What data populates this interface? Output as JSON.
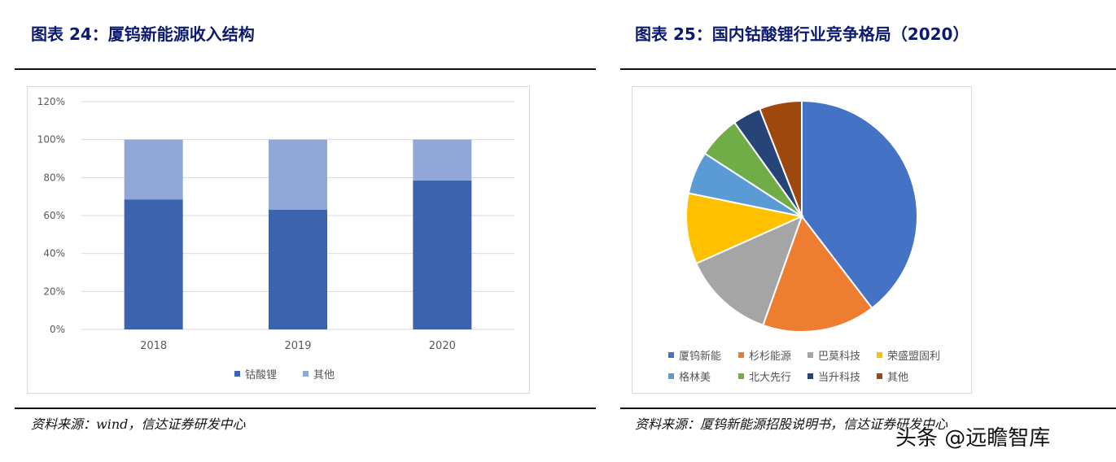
{
  "left": {
    "title": "图表 24：厦钨新能源收入结构",
    "source": "资料来源：wind，信达证券研发中心"
  },
  "right": {
    "title": "图表 25：国内钴酸锂行业竞争格局（2020）",
    "source": "资料来源：厦钨新能源招股说明书，信达证券研发中心"
  },
  "watermark": "头条 @远瞻智库",
  "colors": {
    "title": "#0b1a6e",
    "grid": "#d9d9d9",
    "tick": "#595959"
  },
  "chart_data": [
    {
      "type": "bar",
      "stacked": true,
      "title": "",
      "categories": [
        "2018",
        "2019",
        "2020"
      ],
      "series": [
        {
          "name": "钴酸锂",
          "values": [
            68.5,
            63,
            78.5
          ],
          "color": "#3c64ae"
        },
        {
          "name": "其他",
          "values": [
            31.5,
            37,
            21.5
          ],
          "color": "#91a7d6"
        }
      ],
      "yticks": [
        "0%",
        "20%",
        "40%",
        "60%",
        "80%",
        "100%",
        "120%"
      ],
      "ylim": [
        0,
        120
      ],
      "grid": true,
      "legend": "bottom"
    },
    {
      "type": "pie",
      "title": "",
      "slices": [
        {
          "label": "厦钨新能",
          "value": 40,
          "color": "#4472c4"
        },
        {
          "label": "杉杉能源",
          "value": 16,
          "color": "#ed7d31"
        },
        {
          "label": "巴莫科技",
          "value": 13,
          "color": "#a5a5a5"
        },
        {
          "label": "荣盛盟固利",
          "value": 10,
          "color": "#ffc000"
        },
        {
          "label": "格林美",
          "value": 6,
          "color": "#5b9bd5"
        },
        {
          "label": "北大先行",
          "value": 6,
          "color": "#70ad47"
        },
        {
          "label": "当升科技",
          "value": 4,
          "color": "#264478"
        },
        {
          "label": "其他",
          "value": 6,
          "color": "#9e480e"
        }
      ],
      "legend": "bottom"
    }
  ]
}
